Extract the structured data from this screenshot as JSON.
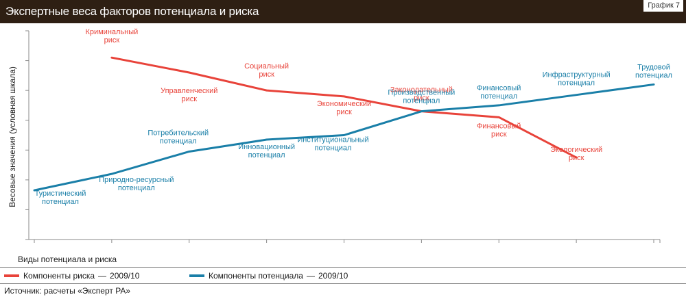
{
  "header": {
    "title": "Экспертные веса факторов потенциала и риска",
    "tag": "График 7"
  },
  "chart_data": {
    "type": "line",
    "title": "Экспертные веса факторов потенциала и риска",
    "xlabel": "Виды потенциала и риска",
    "ylabel": "Весовые значения (условная шкала)",
    "grid": false,
    "legend_position": "bottom-left",
    "ylim": [
      0,
      7
    ],
    "series": [
      {
        "name": "Компоненты риска",
        "color": "#e8433a",
        "points": [
          {
            "x": 1.0,
            "y": 6.1,
            "label": [
              "Криминальный",
              "риск"
            ]
          },
          {
            "x": 2.0,
            "y": 5.6,
            "label": [
              "Управленческий",
              "риск"
            ]
          },
          {
            "x": 3.0,
            "y": 5.0,
            "label": [
              "Социальный",
              "риск"
            ]
          },
          {
            "x": 4.0,
            "y": 4.8,
            "label": [
              "Экономический",
              "риск"
            ]
          },
          {
            "x": 5.0,
            "y": 4.3,
            "label": [
              "Законодательный",
              "риск"
            ]
          },
          {
            "x": 6.0,
            "y": 4.1,
            "label": [
              "Финансовый",
              "риск"
            ]
          },
          {
            "x": 7.0,
            "y": 2.75,
            "label": [
              "Экологический",
              "риск"
            ]
          }
        ]
      },
      {
        "name": "Компоненты потенциала",
        "color": "#1a7fa8",
        "points": [
          {
            "x": 0.0,
            "y": 1.65,
            "label": [
              "Туристический",
              "потенциал"
            ]
          },
          {
            "x": 1.0,
            "y": 2.2,
            "label": [
              "Природно-ресурсный",
              "потенциал"
            ]
          },
          {
            "x": 2.0,
            "y": 2.95,
            "label": [
              "Потребительский",
              "потенциал"
            ]
          },
          {
            "x": 3.0,
            "y": 3.35,
            "label": [
              "Инновационный",
              "потенциал"
            ]
          },
          {
            "x": 4.0,
            "y": 3.5,
            "label": [
              "Институциональный",
              "потенциал"
            ]
          },
          {
            "x": 5.0,
            "y": 4.3,
            "label": [
              "Производственный",
              "потенциал"
            ]
          },
          {
            "x": 6.0,
            "y": 4.5,
            "label": [
              "Финансовый",
              "потенциал"
            ]
          },
          {
            "x": 7.0,
            "y": 4.85,
            "label": [
              "Инфраструктурный",
              "потенциал"
            ]
          },
          {
            "x": 8.0,
            "y": 5.2,
            "label": [
              "Трудовой",
              "потенциал"
            ]
          }
        ]
      }
    ]
  },
  "legend": {
    "items": [
      {
        "label": "Компоненты риска",
        "period": "2009/10",
        "color": "#e8433a"
      },
      {
        "label": "Компоненты потенциала",
        "period": "2009/10",
        "color": "#1a7fa8"
      }
    ]
  },
  "source": "Источник: расчеты «Эксперт РА»"
}
